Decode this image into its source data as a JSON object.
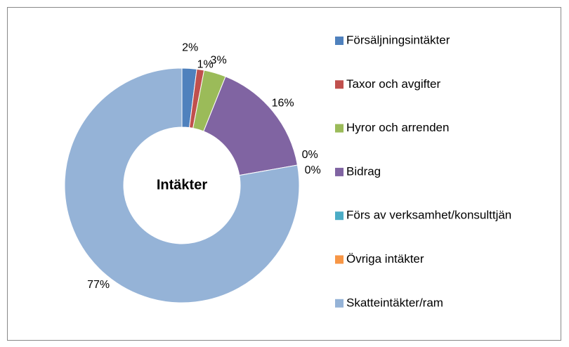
{
  "chart_data": {
    "type": "donut",
    "title": "Intäkter",
    "categories": [
      "Försäljningsintäkter",
      "Taxor och avgifter",
      "Hyror och arrenden",
      "Bidrag",
      "Förs av verksamhet/konsulttjän",
      "Övriga intäkter",
      "Skatteintäkter/ram"
    ],
    "values": [
      2,
      1,
      3,
      16,
      0,
      0,
      77
    ],
    "value_labels": [
      "2%",
      "1%",
      "3%",
      "16%",
      "0%",
      "0%",
      "77%"
    ],
    "colors": [
      "#4f81bd",
      "#c0504d",
      "#9bbb59",
      "#8064a2",
      "#4bacc6",
      "#f79646",
      "#95b3d7"
    ],
    "legend": "right"
  }
}
